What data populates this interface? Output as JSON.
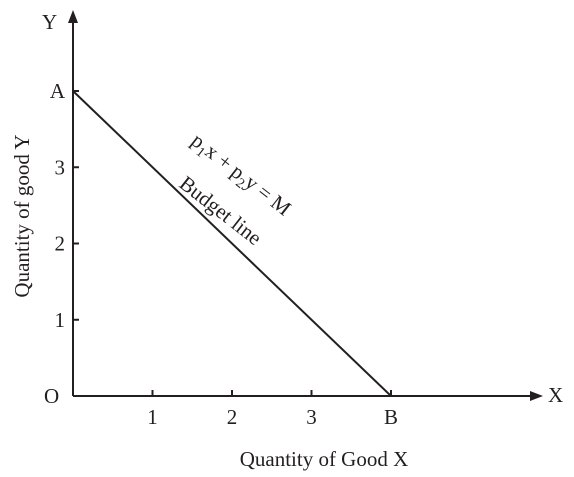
{
  "chart_data": {
    "type": "line",
    "title": "",
    "xlabel": "Quantity of Good X",
    "ylabel": "Quantity of good Y",
    "x_axis_symbol": "X",
    "y_axis_symbol": "Y",
    "xlim": [
      0,
      5.4
    ],
    "ylim": [
      0,
      4.3
    ],
    "x_ticks": [
      {
        "value": 1,
        "label": "1"
      },
      {
        "value": 2,
        "label": "2"
      },
      {
        "value": 3,
        "label": "3"
      },
      {
        "value": 4,
        "label": "B"
      }
    ],
    "y_ticks": [
      {
        "value": 1,
        "label": "1"
      },
      {
        "value": 2,
        "label": "2"
      },
      {
        "value": 3,
        "label": "3"
      },
      {
        "value": 4,
        "label": "A"
      }
    ],
    "origin_label": "O",
    "series": [
      {
        "x": [
          0,
          4
        ],
        "y": [
          4,
          0
        ]
      }
    ],
    "annotations": {
      "equation": {
        "p1": "p",
        "s1": "1",
        "mid": "x + p",
        "s2": "2",
        "tail": "y = M"
      },
      "budget_line_label": "Budget line"
    },
    "grid": false,
    "legend": "none"
  }
}
